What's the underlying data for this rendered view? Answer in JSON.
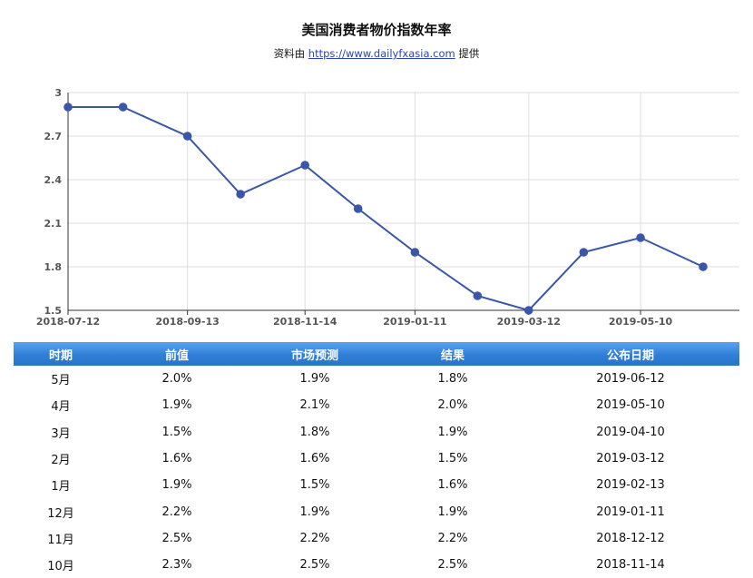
{
  "header": {
    "title": "美国消费者物价指数年率",
    "subtitle_prefix": "资料由",
    "subtitle_link": "https://www.dailyfxasia.com",
    "subtitle_suffix": "提供"
  },
  "colors": {
    "line": "#3a56a8",
    "grid": "#dddddd",
    "axis": "#333333",
    "header_bar": "#2f7fd8"
  },
  "chart_data": {
    "type": "line",
    "title": "美国消费者物价指数年率",
    "x": [
      "2018-07-12",
      "2018-08-10",
      "2018-09-13",
      "2018-10-11",
      "2018-11-14",
      "2018-12-12",
      "2019-01-11",
      "2019-02-13",
      "2019-03-12",
      "2019-04-10",
      "2019-05-10",
      "2019-06-12"
    ],
    "values": [
      2.9,
      2.9,
      2.7,
      2.3,
      2.5,
      2.2,
      1.9,
      1.6,
      1.5,
      1.9,
      2.0,
      1.8
    ],
    "x_tick_labels": [
      "2018-07-12",
      "2018-09-13",
      "2018-11-14",
      "2019-01-11",
      "2019-03-12",
      "2019-05-10"
    ],
    "y_ticks": [
      "1.5",
      "1.8",
      "2.1",
      "2.4",
      "2.7",
      "3"
    ],
    "ylim": [
      1.5,
      3.0
    ],
    "grid": true
  },
  "table": {
    "columns": [
      "时期",
      "前值",
      "市场预测",
      "结果",
      "公布日期"
    ],
    "rows": [
      [
        "5月",
        "2.0%",
        "1.9%",
        "1.8%",
        "2019-06-12"
      ],
      [
        "4月",
        "1.9%",
        "2.1%",
        "2.0%",
        "2019-05-10"
      ],
      [
        "3月",
        "1.5%",
        "1.8%",
        "1.9%",
        "2019-04-10"
      ],
      [
        "2月",
        "1.6%",
        "1.6%",
        "1.5%",
        "2019-03-12"
      ],
      [
        "1月",
        "1.9%",
        "1.5%",
        "1.6%",
        "2019-02-13"
      ],
      [
        "12月",
        "2.2%",
        "1.9%",
        "1.9%",
        "2019-01-11"
      ],
      [
        "11月",
        "2.5%",
        "2.2%",
        "2.2%",
        "2018-12-12"
      ],
      [
        "10月",
        "2.3%",
        "2.5%",
        "2.5%",
        "2018-11-14"
      ]
    ]
  }
}
